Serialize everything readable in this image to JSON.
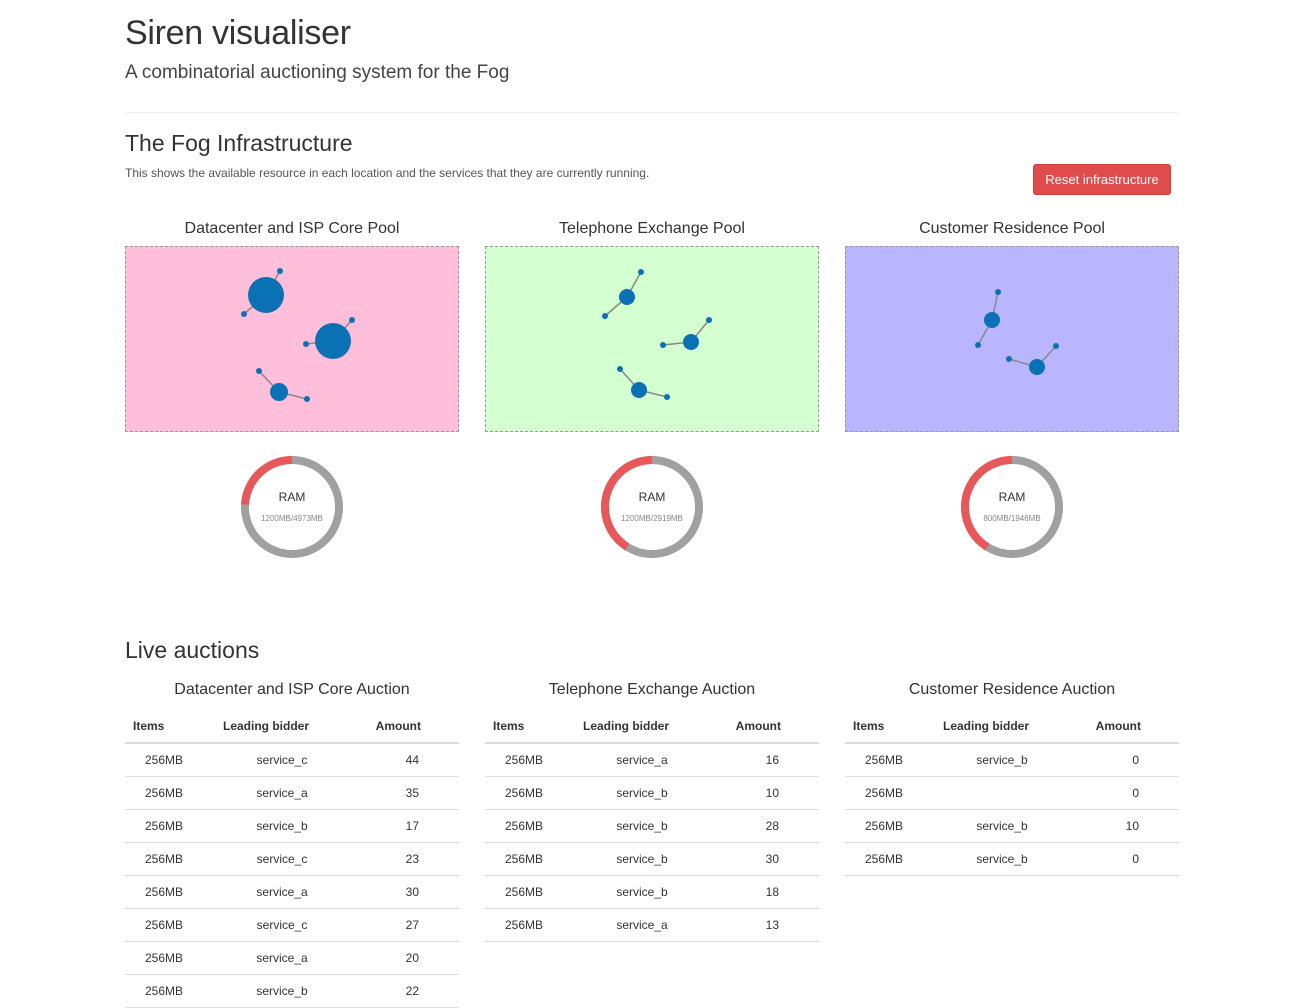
{
  "header": {
    "title": "Siren visualiser",
    "subtitle": "A combinatorial auctioning system for the Fog"
  },
  "infrastructure": {
    "heading": "The Fog Infrastructure",
    "description": "This shows the available resource in each location and the services that they are currently running.",
    "reset_label": "Reset infrastructure",
    "pools": [
      {
        "title": "Datacenter and ISP Core Pool",
        "bg": "#ffbed9",
        "ram_label": "RAM",
        "ram_used_mb": 1200,
        "ram_total_mb": 4973,
        "ram_text": "1200MB/4973MB"
      },
      {
        "title": "Telephone Exchange Pool",
        "bg": "#d4ffd0",
        "ram_label": "RAM",
        "ram_used_mb": 1200,
        "ram_total_mb": 2919,
        "ram_text": "1200MB/2919MB"
      },
      {
        "title": "Customer Residence Pool",
        "bg": "#b9b6ff",
        "ram_label": "RAM",
        "ram_used_mb": 800,
        "ram_total_mb": 1946,
        "ram_text": "800MB/1946MB"
      }
    ]
  },
  "colors": {
    "node": "#0a71b4",
    "link": "#888888",
    "ram_used": "#e8585a",
    "ram_free": "#a0a0a0",
    "button": "#e04b4b"
  },
  "auctions": {
    "heading": "Live auctions",
    "columns": [
      "Items",
      "Leading bidder",
      "Amount"
    ],
    "tables": [
      {
        "title": "Datacenter and ISP Core Auction",
        "rows": [
          [
            "256MB",
            "service_c",
            "44"
          ],
          [
            "256MB",
            "service_a",
            "35"
          ],
          [
            "256MB",
            "service_b",
            "17"
          ],
          [
            "256MB",
            "service_c",
            "23"
          ],
          [
            "256MB",
            "service_a",
            "30"
          ],
          [
            "256MB",
            "service_c",
            "27"
          ],
          [
            "256MB",
            "service_a",
            "20"
          ],
          [
            "256MB",
            "service_b",
            "22"
          ]
        ]
      },
      {
        "title": "Telephone Exchange Auction",
        "rows": [
          [
            "256MB",
            "service_a",
            "16"
          ],
          [
            "256MB",
            "service_b",
            "10"
          ],
          [
            "256MB",
            "service_b",
            "28"
          ],
          [
            "256MB",
            "service_b",
            "30"
          ],
          [
            "256MB",
            "service_b",
            "18"
          ],
          [
            "256MB",
            "service_a",
            "13"
          ]
        ]
      },
      {
        "title": "Customer Residence Auction",
        "rows": [
          [
            "256MB",
            "service_b",
            "0"
          ],
          [
            "256MB",
            "",
            "0"
          ],
          [
            "256MB",
            "service_b",
            "10"
          ],
          [
            "256MB",
            "service_b",
            "0"
          ]
        ]
      }
    ]
  }
}
